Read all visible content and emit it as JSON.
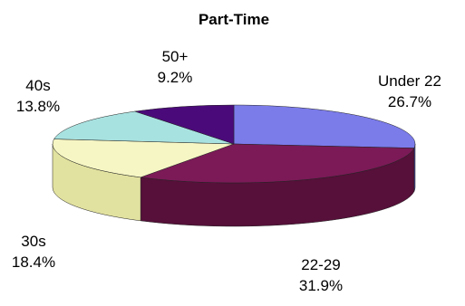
{
  "chart_data": {
    "type": "pie",
    "title": "Part-Time",
    "slices": [
      {
        "label": "Under 22",
        "value": 26.7,
        "value_label": "26.7%",
        "color": "#7b7bea",
        "side_color": "#5151b2"
      },
      {
        "label": "22-29",
        "value": 31.9,
        "value_label": "31.9%",
        "color": "#7b1a57",
        "side_color": "#561039"
      },
      {
        "label": "30s",
        "value": 18.4,
        "value_label": "18.4%",
        "color": "#f6f6c4",
        "side_color": "#e2e2a0"
      },
      {
        "label": "40s",
        "value": 13.8,
        "value_label": "13.8%",
        "color": "#a8e2e0",
        "side_color": "#7fc4c2"
      },
      {
        "label": "50+",
        "value": 9.2,
        "value_label": "9.2%",
        "color": "#4b0a7a",
        "side_color": "#330652"
      }
    ],
    "projection": "3d-perspective",
    "start_direction": "up",
    "direction": "clockwise"
  }
}
